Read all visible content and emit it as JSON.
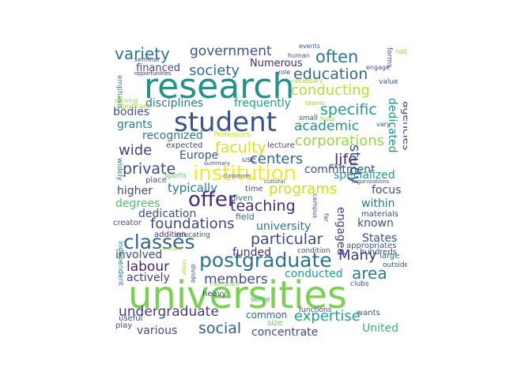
{
  "words": [
    {
      "text": "universities",
      "color": "#7ad151"
    },
    {
      "text": "research",
      "color": "#21918c"
    },
    {
      "text": "student",
      "color": "#3b528b"
    },
    {
      "text": "institution",
      "color": "#fde725"
    },
    {
      "text": "postgraduate",
      "color": "#2c728e"
    },
    {
      "text": "classes",
      "color": "#31688e"
    },
    {
      "text": "offer",
      "color": "#472d7b"
    },
    {
      "text": "often",
      "color": "#2a788e"
    },
    {
      "text": "education",
      "color": "#31688e"
    },
    {
      "text": "society",
      "color": "#2c728e"
    },
    {
      "text": "variety",
      "color": "#2a788e"
    },
    {
      "text": "government",
      "color": "#3b528b"
    },
    {
      "text": "conducting",
      "color": "#b5de2b"
    },
    {
      "text": "specific",
      "color": "#1f9e89"
    },
    {
      "text": "faculty",
      "color": "#d8e219"
    },
    {
      "text": "corporations",
      "color": "#95d840"
    },
    {
      "text": "academic",
      "color": "#21918c"
    },
    {
      "text": "life",
      "color": "#482878"
    },
    {
      "text": "private",
      "color": "#3e4a89"
    },
    {
      "text": "programs",
      "color": "#c8e020"
    },
    {
      "text": "teaching",
      "color": "#472d7b"
    },
    {
      "text": "centers",
      "color": "#31688e"
    },
    {
      "text": "foundations",
      "color": "#3e4a89"
    },
    {
      "text": "particular",
      "color": "#3e4a89"
    },
    {
      "text": "area",
      "color": "#287c8e"
    },
    {
      "text": "labour",
      "color": "#482475"
    },
    {
      "text": "members",
      "color": "#3e4a89"
    },
    {
      "text": "undergraduate",
      "color": "#443983"
    },
    {
      "text": "expertise",
      "color": "#1fa187"
    },
    {
      "text": "social",
      "color": "#33638d"
    },
    {
      "text": "Many",
      "color": "#443983"
    },
    {
      "text": "study",
      "color": "#3b528b"
    },
    {
      "text": "dedicated",
      "color": "#21918c"
    },
    {
      "text": "agencies",
      "color": "#3e4a89"
    },
    {
      "text": "disciplines",
      "color": "#2a788e"
    },
    {
      "text": "frequently",
      "color": "#1f9e89"
    },
    {
      "text": "financed",
      "color": "#3e4a89"
    },
    {
      "text": "Numerous",
      "color": "#482878"
    },
    {
      "text": "grants",
      "color": "#2a788e"
    },
    {
      "text": "bodies",
      "color": "#3b528b"
    },
    {
      "text": "recognized",
      "color": "#2c728e"
    },
    {
      "text": "wide",
      "color": "#404688"
    },
    {
      "text": "Europe",
      "color": "#3b528b"
    },
    {
      "text": "commitment",
      "color": "#3b528b"
    },
    {
      "text": "specialized",
      "color": "#1f9e89"
    },
    {
      "text": "typically",
      "color": "#2a788e"
    },
    {
      "text": "higher",
      "color": "#3e4a89"
    },
    {
      "text": "degrees",
      "color": "#4ac16d"
    },
    {
      "text": "dedication",
      "color": "#3b528b"
    },
    {
      "text": "focus",
      "color": "#3e4a89"
    },
    {
      "text": "within",
      "color": "#2a788e"
    },
    {
      "text": "university",
      "color": "#2a788e"
    },
    {
      "text": "known",
      "color": "#3b528b"
    },
    {
      "text": "engaged",
      "color": "#414487"
    },
    {
      "text": "States",
      "color": "#3b528b"
    },
    {
      "text": "involved",
      "color": "#3e4a89"
    },
    {
      "text": "actively",
      "color": "#433e85"
    },
    {
      "text": "funded",
      "color": "#472d7b"
    },
    {
      "text": "conducted",
      "color": "#1f9e89"
    },
    {
      "text": "various",
      "color": "#3e4a89"
    },
    {
      "text": "concentrate",
      "color": "#3e4a89"
    },
    {
      "text": "United",
      "color": "#35b779"
    },
    {
      "text": "common",
      "color": "#31688e"
    },
    {
      "text": "field",
      "color": "#31688e"
    },
    {
      "text": "time",
      "color": "#3b528b"
    },
    {
      "text": "given",
      "color": "#2c728e"
    },
    {
      "text": "expected",
      "color": "#3e4a89"
    },
    {
      "text": "Professors",
      "color": "#c2df23"
    },
    {
      "text": "lecture",
      "color": "#433e85"
    },
    {
      "text": "use",
      "color": "#3b528b"
    },
    {
      "text": "exs",
      "color": "#3e4a89"
    },
    {
      "text": "place",
      "color": "#3b528b"
    },
    {
      "text": "sports",
      "color": "#5ec962"
    },
    {
      "text": "materials",
      "color": "#3e4a89"
    },
    {
      "text": "creator",
      "color": "#3e4a89"
    },
    {
      "text": "addition",
      "color": "#472d7b"
    },
    {
      "text": "educating",
      "color": "#3e4a89"
    },
    {
      "text": "hundreds",
      "color": "#3e4a89"
    },
    {
      "text": "appropriates",
      "color": "#3b528b"
    },
    {
      "text": "condition",
      "color": "#3e4a89"
    },
    {
      "text": "large",
      "color": "#2c728e"
    },
    {
      "text": "outside",
      "color": "#3b528b"
    },
    {
      "text": "heavy",
      "color": "#414487"
    },
    {
      "text": "complex",
      "color": "#a0da39"
    },
    {
      "text": "clubs",
      "color": "#3b528b"
    },
    {
      "text": "useful",
      "color": "#3e4a89"
    },
    {
      "text": "play",
      "color": "#3b528b"
    },
    {
      "text": "serve",
      "color": "#35b779"
    },
    {
      "text": "size",
      "color": "#6ccd5a"
    },
    {
      "text": "functions",
      "color": "#3e4a89"
    },
    {
      "text": "wants",
      "color": "#3b528b"
    },
    {
      "text": "small",
      "color": "#3b528b"
    },
    {
      "text": "hubs",
      "color": "#8fd744"
    },
    {
      "text": "teams",
      "color": "#8fd744"
    },
    {
      "text": "nature",
      "color": "#a0da39"
    },
    {
      "text": "events",
      "color": "#3b528b"
    },
    {
      "text": "human",
      "color": "#3b528b"
    },
    {
      "text": "engage",
      "color": "#3e4a89"
    },
    {
      "text": "role",
      "color": "#3b528b"
    },
    {
      "text": "necessary",
      "color": "#a0da39"
    },
    {
      "text": "value",
      "color": "#3b528b"
    },
    {
      "text": "seminar",
      "color": "#3b528b"
    },
    {
      "text": "opportunities",
      "color": "#472d7b"
    },
    {
      "text": "serving",
      "color": "#a0da39"
    },
    {
      "text": "significant",
      "color": "#a0da39"
    },
    {
      "text": "summary",
      "color": "#3b528b"
    },
    {
      "text": "classroom",
      "color": "#3b528b"
    },
    {
      "text": "cultural",
      "color": "#3b528b"
    },
    {
      "text": "organizations",
      "color": "#3b528b"
    },
    {
      "text": "vibrant",
      "color": "#a0da39"
    },
    {
      "text": "vary",
      "color": "#3b528b"
    },
    {
      "text": "emphasis",
      "color": "#21918c"
    },
    {
      "text": "forms",
      "color": "#3b528b"
    },
    {
      "text": "widely",
      "color": "#2a788e"
    },
    {
      "text": "campus",
      "color": "#3b528b"
    },
    {
      "text": "far",
      "color": "#3b528b"
    },
    {
      "text": "divide",
      "color": "#3b528b"
    },
    {
      "text": "independent",
      "color": "#2a788e"
    },
    {
      "text": "handful",
      "color": "#3b528b"
    },
    {
      "text": "range",
      "color": "#a0da39"
    }
  ]
}
